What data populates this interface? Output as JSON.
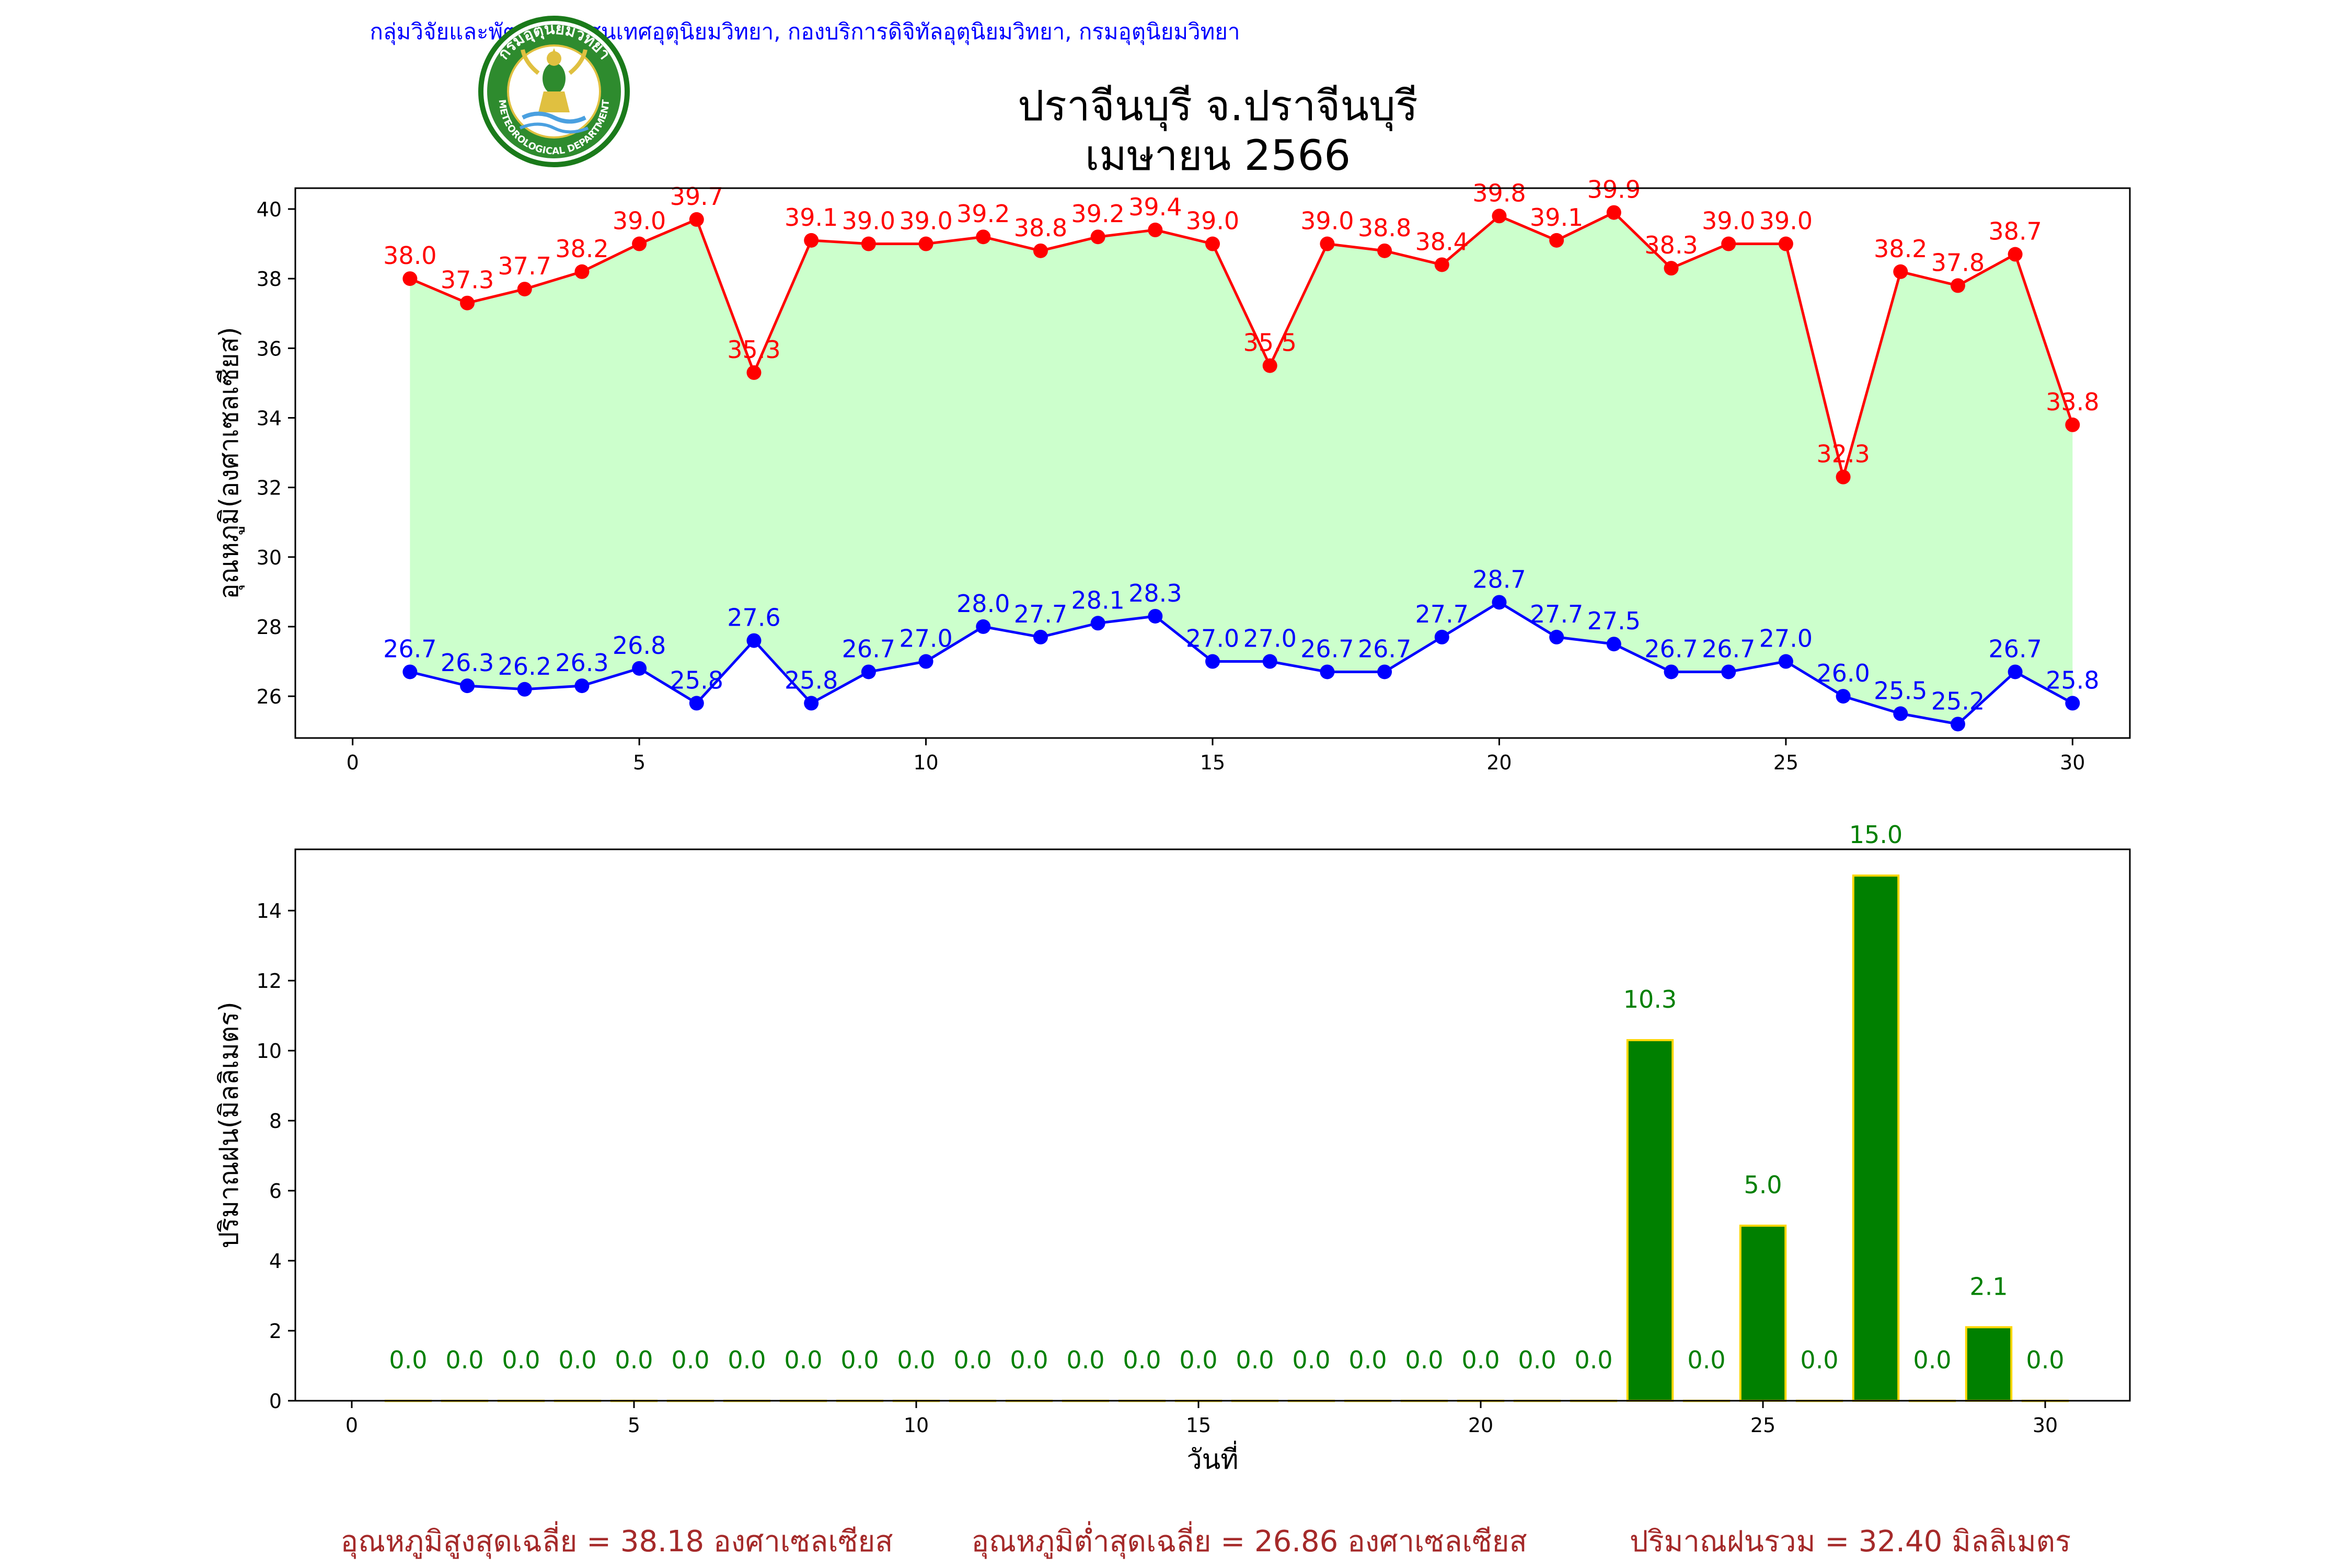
{
  "header": {
    "org_line": "กลุ่มวิจัยและพัฒนาสารสนเทศอุตุนิยมวิทยา, กองบริการดิจิทัลอุตุนิยมวิทยา, กรมอุตุนิยมวิทยา",
    "station": "ปราจีนบุรี จ.ปราจีนบุรี",
    "month": "เมษายน 2566",
    "logo_top_text": "กรมอุตุนิยมวิทยา",
    "logo_bottom_text": "METEOROLOGICAL DEPARTMENT"
  },
  "colors": {
    "max_line": "#ff0000",
    "min_line": "#0000ff",
    "fill": "#ccffcc",
    "rain_bar": "#008000",
    "rain_edge": "#ffd700",
    "rain_label": "#008000",
    "header_text": "#0000ff",
    "footer_text": "#a52a2a"
  },
  "chart_data": [
    {
      "type": "line",
      "ylabel": "อุณหภูมิ(องศาเซลเซียส)",
      "xlim": [
        -1,
        31
      ],
      "ylim": [
        24.8,
        40.6
      ],
      "xticks": [
        0,
        5,
        10,
        15,
        20,
        25,
        30
      ],
      "yticks": [
        26,
        28,
        30,
        32,
        34,
        36,
        38,
        40
      ],
      "x": [
        1,
        2,
        3,
        4,
        5,
        6,
        7,
        8,
        9,
        10,
        11,
        12,
        13,
        14,
        15,
        16,
        17,
        18,
        19,
        20,
        21,
        22,
        23,
        24,
        25,
        26,
        27,
        28,
        29,
        30
      ],
      "series": [
        {
          "color": "#ff0000",
          "values": [
            38.0,
            37.3,
            37.7,
            38.2,
            39.0,
            39.7,
            35.3,
            39.1,
            39.0,
            39.0,
            39.2,
            38.8,
            39.2,
            39.4,
            39.0,
            35.5,
            39.0,
            38.8,
            38.4,
            39.8,
            39.1,
            39.9,
            38.3,
            39.0,
            39.0,
            32.3,
            38.2,
            37.8,
            38.7,
            33.8
          ]
        },
        {
          "color": "#0000ff",
          "values": [
            26.7,
            26.3,
            26.2,
            26.3,
            26.8,
            25.8,
            27.6,
            25.8,
            26.7,
            27.0,
            28.0,
            27.7,
            28.1,
            28.3,
            27.0,
            27.0,
            26.7,
            26.7,
            27.7,
            28.7,
            27.7,
            27.5,
            26.7,
            26.7,
            27.0,
            26.0,
            25.5,
            25.2,
            26.7,
            25.8
          ]
        }
      ],
      "fill_between": true,
      "grid": false
    },
    {
      "type": "bar",
      "xlabel": "วันที่",
      "ylabel": "ปริมาณฝน(มิลลิเมตร)",
      "xlim": [
        -1,
        31.5
      ],
      "ylim": [
        0,
        15.75
      ],
      "xticks": [
        0,
        5,
        10,
        15,
        20,
        25,
        30
      ],
      "yticks": [
        0,
        2,
        4,
        6,
        8,
        10,
        12,
        14
      ],
      "x": [
        1,
        2,
        3,
        4,
        5,
        6,
        7,
        8,
        9,
        10,
        11,
        12,
        13,
        14,
        15,
        16,
        17,
        18,
        19,
        20,
        21,
        22,
        23,
        24,
        25,
        26,
        27,
        28,
        29,
        30
      ],
      "values": [
        0.0,
        0.0,
        0.0,
        0.0,
        0.0,
        0.0,
        0.0,
        0.0,
        0.0,
        0.0,
        0.0,
        0.0,
        0.0,
        0.0,
        0.0,
        0.0,
        0.0,
        0.0,
        0.0,
        0.0,
        0.0,
        0.0,
        10.3,
        0.0,
        5.0,
        0.0,
        15.0,
        0.0,
        2.1,
        0.0
      ],
      "grid": false
    }
  ],
  "footer": {
    "avg_max": "อุณหภูมิสูงสุดเฉลี่ย = 38.18 องศาเซลเซียส",
    "avg_min": "อุณหภูมิต่ำสุดเฉลี่ย = 26.86 องศาเซลเซียส",
    "rain_total": "ปริมาณฝนรวม = 32.40 มิลลิเมตร"
  }
}
